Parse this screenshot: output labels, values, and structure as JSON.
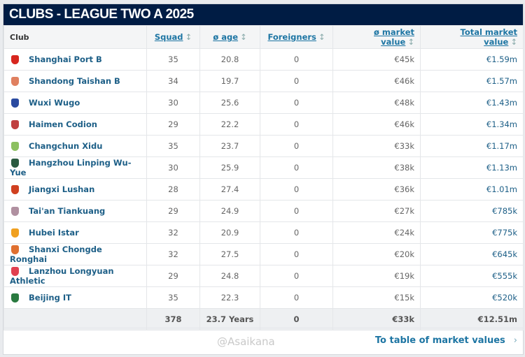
{
  "title": "CLUBS - LEAGUE TWO A 2025",
  "columns": {
    "club": "Club",
    "squad": "Squad",
    "age": "ø age",
    "foreigners": "Foreigners",
    "avg_mv": "ø market value",
    "total_mv": "Total market value",
    "sort_icon": "↕"
  },
  "rows": [
    {
      "club": "Shanghai Port B",
      "squad": "35",
      "age": "20.8",
      "foreigners": "0",
      "avg_mv": "€45k",
      "total_mv": "€1.59m",
      "color": "#d7261e"
    },
    {
      "club": "Shandong Taishan B",
      "squad": "34",
      "age": "19.7",
      "foreigners": "0",
      "avg_mv": "€46k",
      "total_mv": "€1.57m",
      "color": "#e08060"
    },
    {
      "club": "Wuxi Wugo",
      "squad": "30",
      "age": "25.6",
      "foreigners": "0",
      "avg_mv": "€48k",
      "total_mv": "€1.43m",
      "color": "#2a4aa0"
    },
    {
      "club": "Haimen Codion",
      "squad": "29",
      "age": "22.2",
      "foreigners": "0",
      "avg_mv": "€46k",
      "total_mv": "€1.34m",
      "color": "#c04040"
    },
    {
      "club": "Changchun Xidu",
      "squad": "35",
      "age": "23.7",
      "foreigners": "0",
      "avg_mv": "€33k",
      "total_mv": "€1.17m",
      "color": "#8cc060"
    },
    {
      "club": "Hangzhou Linping Wu-Yue",
      "squad": "30",
      "age": "25.9",
      "foreigners": "0",
      "avg_mv": "€38k",
      "total_mv": "€1.13m",
      "color": "#2a5a40"
    },
    {
      "club": "Jiangxi Lushan",
      "squad": "28",
      "age": "27.4",
      "foreigners": "0",
      "avg_mv": "€36k",
      "total_mv": "€1.01m",
      "color": "#d04020"
    },
    {
      "club": "Tai'an Tiankuang",
      "squad": "29",
      "age": "24.9",
      "foreigners": "0",
      "avg_mv": "€27k",
      "total_mv": "€785k",
      "color": "#b090a0"
    },
    {
      "club": "Hubei Istar",
      "squad": "32",
      "age": "20.9",
      "foreigners": "0",
      "avg_mv": "€24k",
      "total_mv": "€775k",
      "color": "#f0a020"
    },
    {
      "club": "Shanxi Chongde Ronghai",
      "squad": "32",
      "age": "27.5",
      "foreigners": "0",
      "avg_mv": "€20k",
      "total_mv": "€645k",
      "color": "#e07030"
    },
    {
      "club": "Lanzhou Longyuan Athletic",
      "squad": "29",
      "age": "24.8",
      "foreigners": "0",
      "avg_mv": "€19k",
      "total_mv": "€555k",
      "color": "#e04050"
    },
    {
      "club": "Beijing IT",
      "squad": "35",
      "age": "22.3",
      "foreigners": "0",
      "avg_mv": "€15k",
      "total_mv": "€520k",
      "color": "#2a7a40"
    }
  ],
  "totals": {
    "squad": "378",
    "age": "23.7 Years",
    "foreigners": "0",
    "avg_mv": "€33k",
    "total_mv": "€12.51m"
  },
  "footer": {
    "link": "To table of market values",
    "chevron": "›",
    "watermark": "@Asaikana"
  }
}
